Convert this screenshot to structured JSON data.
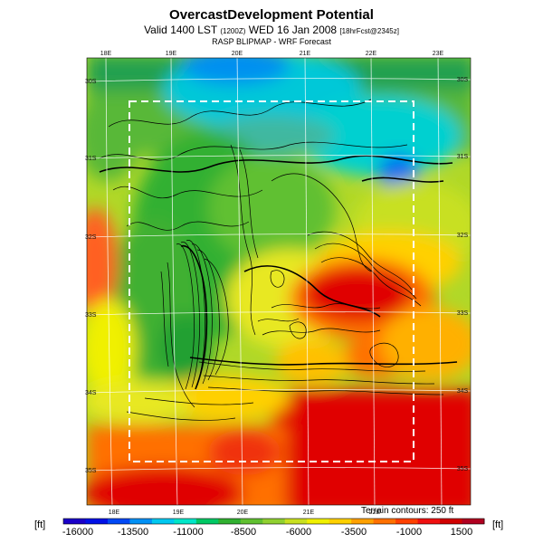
{
  "header": {
    "title": "OvercastDevelopment Potential",
    "valid_prefix": "Valid 1400 LST",
    "valid_small": "(1200Z)",
    "valid_main": "WED 16 Jan 2008",
    "valid_suffix": "[18hrFcst@2345z]",
    "subtitle": "RASP BLIPMAP - WRF Forecast"
  },
  "map": {
    "lon_labels_top": [
      "18E",
      "19E",
      "20E",
      "21E",
      "22E",
      "23E"
    ],
    "lon_labels_bottom": [
      "18E",
      "19E",
      "20E",
      "21E",
      "22E"
    ],
    "lat_labels_left": [
      "30S",
      "31S",
      "32S",
      "33S",
      "34S",
      "35S"
    ],
    "lat_labels_right": [
      "30S",
      "31S",
      "32S",
      "33S",
      "34S",
      "35S"
    ],
    "terrain_note": "Terrain contours: 250 ft"
  },
  "colorbar": {
    "unit": "[ft]",
    "tick_labels": [
      "-16000",
      "-13500",
      "-11000",
      "-8500",
      "-6000",
      "-3500",
      "-1000",
      "1500"
    ],
    "colors": [
      "#1a00c8",
      "#0010e6",
      "#0048f5",
      "#0090f5",
      "#00c8f0",
      "#00e6c8",
      "#00c864",
      "#30b030",
      "#60c030",
      "#90d030",
      "#c8e020",
      "#f0f000",
      "#ffd000",
      "#ffa000",
      "#ff7000",
      "#ff4000",
      "#f01010",
      "#d00000",
      "#b00020"
    ]
  }
}
